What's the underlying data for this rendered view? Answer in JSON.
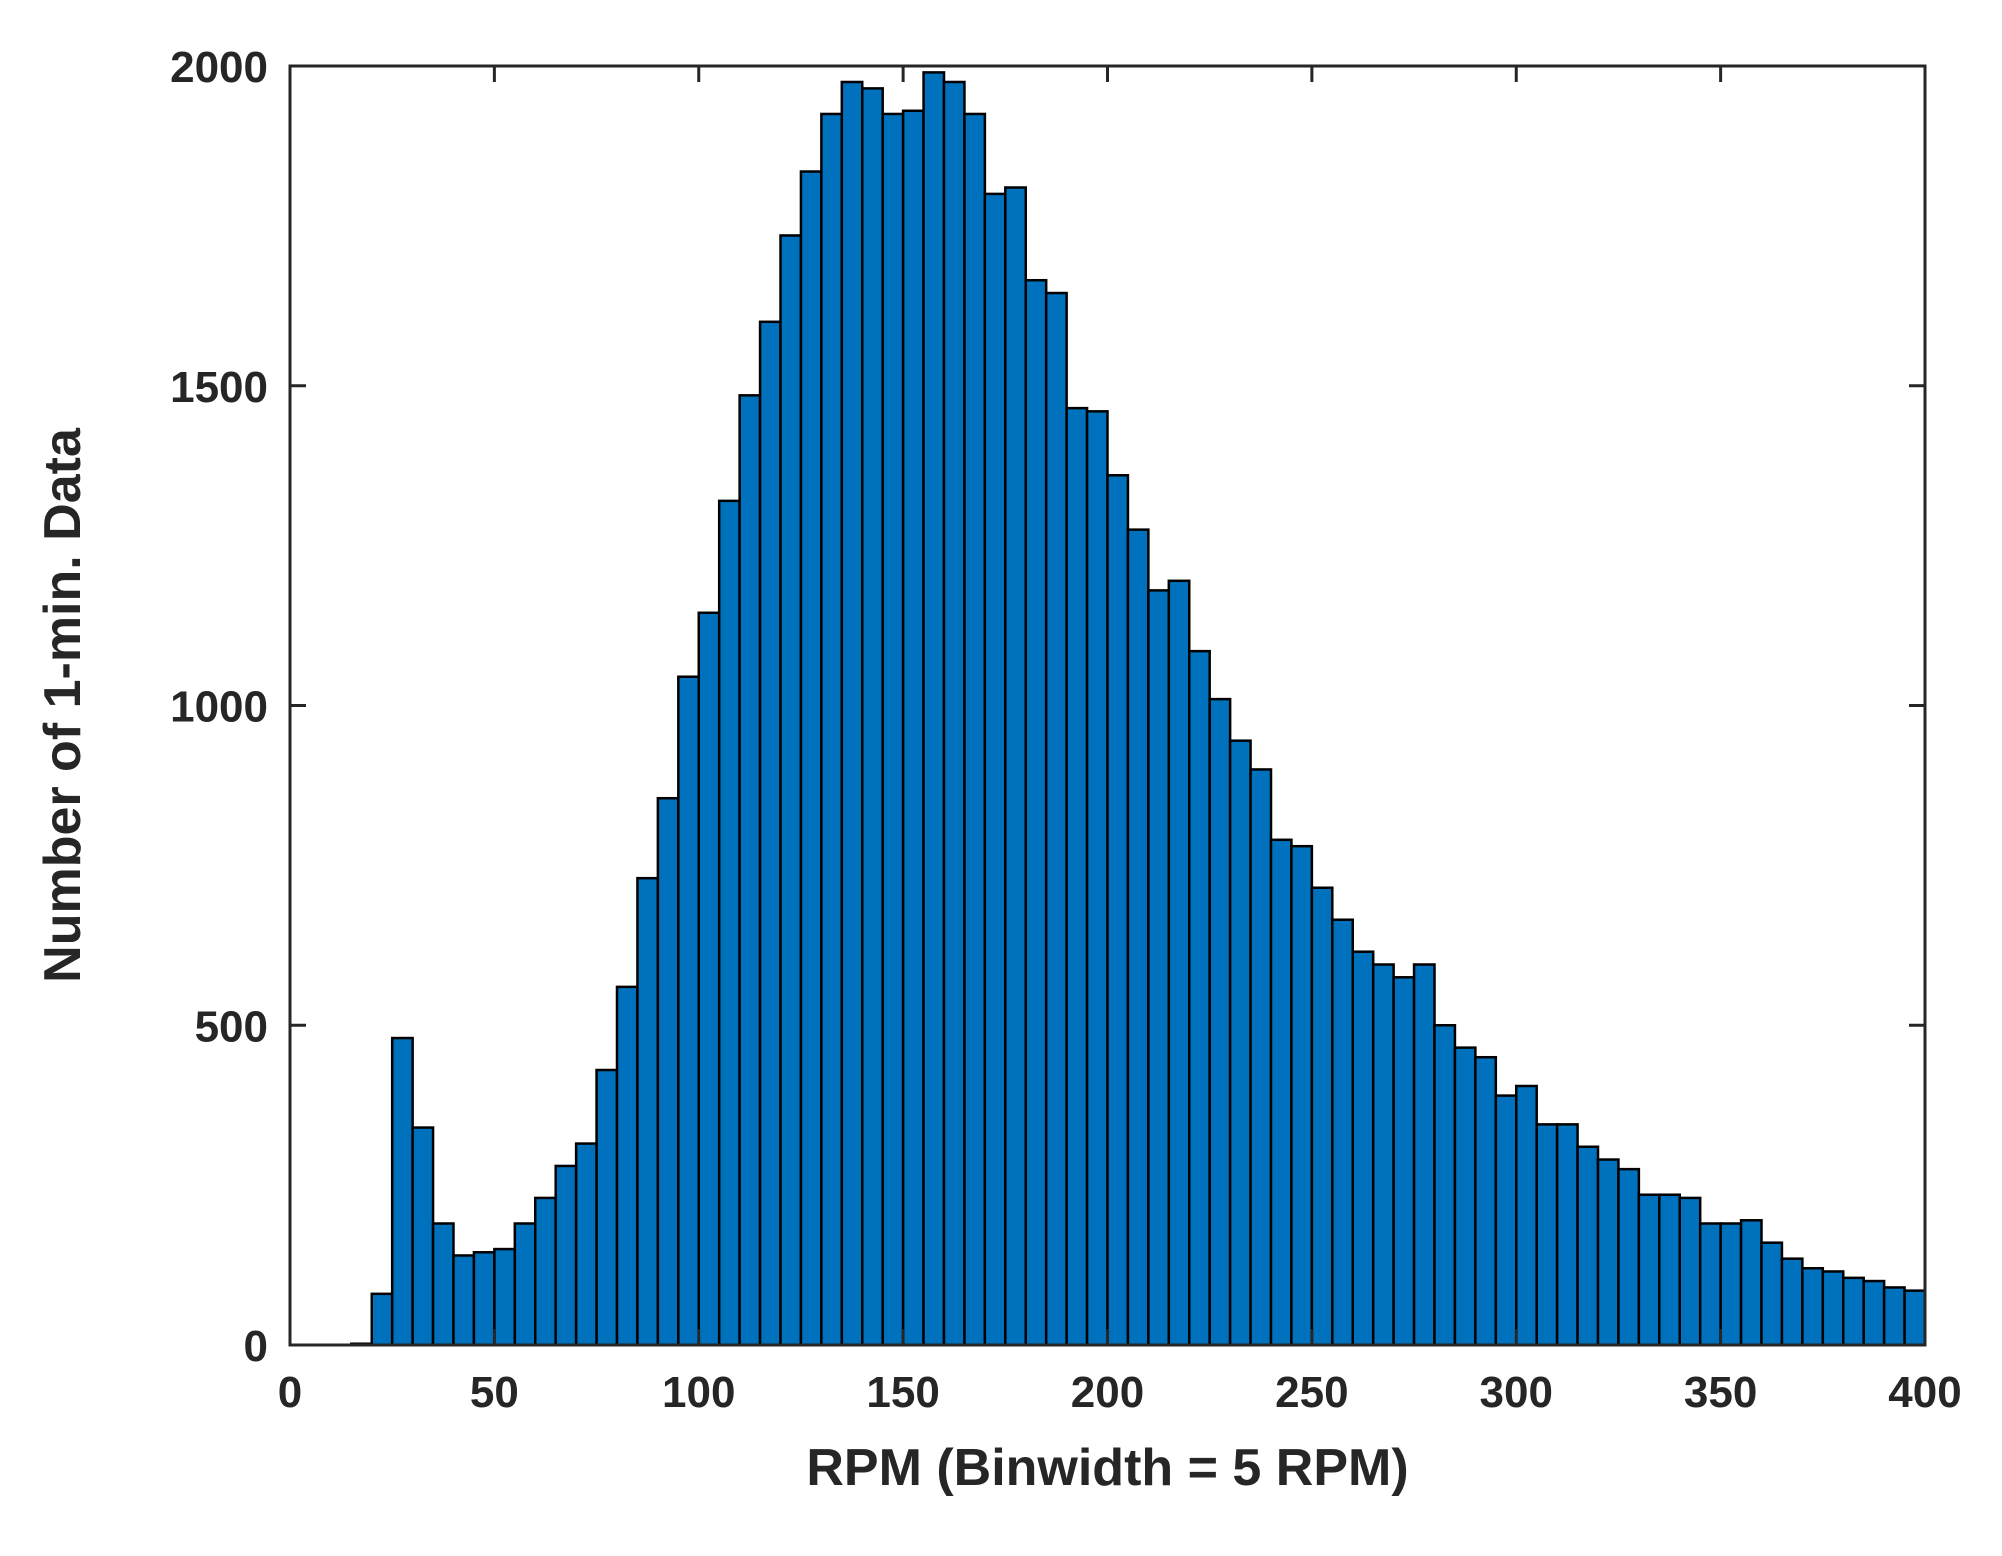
{
  "chart_data": {
    "type": "bar",
    "title": "",
    "xlabel": "RPM (Binwidth = 5 RPM)",
    "ylabel": "Number of 1-min. Data",
    "xlim": [
      0,
      400
    ],
    "ylim": [
      0,
      2000
    ],
    "xticks": [
      "0",
      "50",
      "100",
      "150",
      "200",
      "250",
      "300",
      "350",
      "400"
    ],
    "yticks": [
      "0",
      "500",
      "1000",
      "1500",
      "2000"
    ],
    "binwidth": 5,
    "grid": false,
    "legend": "none",
    "bar_color": "#0072BD",
    "edge_color": "#000000",
    "bins_left_edge": [
      15,
      20,
      25,
      30,
      35,
      40,
      45,
      50,
      55,
      60,
      65,
      70,
      75,
      80,
      85,
      90,
      95,
      100,
      105,
      110,
      115,
      120,
      125,
      130,
      135,
      140,
      145,
      150,
      155,
      160,
      165,
      170,
      175,
      180,
      185,
      190,
      195,
      200,
      205,
      210,
      215,
      220,
      225,
      230,
      235,
      240,
      245,
      250,
      255,
      260,
      265,
      270,
      275,
      280,
      285,
      290,
      295,
      300,
      305,
      310,
      315,
      320,
      325,
      330,
      335,
      340,
      345,
      350,
      355,
      360,
      365,
      370,
      375,
      380,
      385,
      390,
      395
    ],
    "values": [
      2,
      80,
      480,
      340,
      190,
      140,
      145,
      150,
      190,
      230,
      280,
      315,
      430,
      560,
      730,
      855,
      1045,
      1145,
      1320,
      1485,
      1600,
      1735,
      1835,
      1925,
      1975,
      1965,
      1925,
      1930,
      1990,
      1975,
      1925,
      1800,
      1810,
      1665,
      1645,
      1465,
      1460,
      1360,
      1275,
      1180,
      1195,
      1085,
      1010,
      945,
      900,
      790,
      780,
      715,
      665,
      615,
      595,
      575,
      595,
      500,
      465,
      450,
      390,
      405,
      345,
      345,
      310,
      290,
      275,
      235,
      235,
      230,
      190,
      190,
      195,
      160,
      135,
      120,
      115,
      105,
      100,
      90,
      85
    ]
  }
}
